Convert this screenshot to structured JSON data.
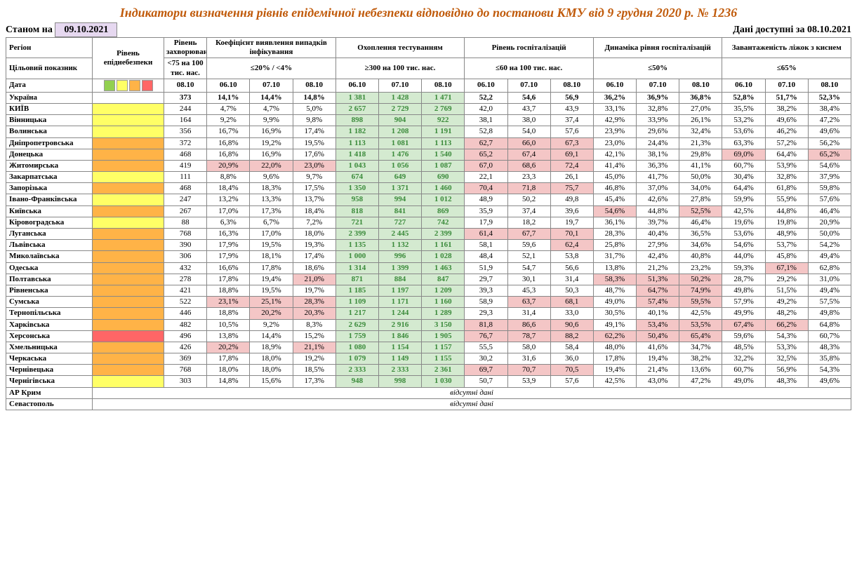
{
  "colors": {
    "title": "#c05a0a",
    "green_bg": "#d4ead0",
    "green_text": "#3a8a3a",
    "pink_bg": "#f4c6c6",
    "yellow_bg": "#ffff66",
    "orange_bg": "#ffb347",
    "red_bg": "#ff6666",
    "lvl_green": "#92d050",
    "lvl_yellow": "#ffff66",
    "lvl_orange": "#ffb347",
    "lvl_red": "#ff6666"
  },
  "title": "Індикатори визначення рівнів епідемічної небезпеки відповідно до постанови КМУ від 9 грудня 2020 р. № 1236",
  "as_of_label": "Станом на",
  "as_of_date": "09.10.2021",
  "available_label": "Дані доступні за",
  "available_date": "08.10.2021",
  "headers": {
    "region": "Регіон",
    "target": "Цільовий показник",
    "date": "Дата",
    "level": "Рівень епіднебезпеки",
    "morbidity": "Рівень захворюваності",
    "morbidity_t": "<75 на 100 тис. нас.",
    "coef": "Коефіцієнт виявлення випадків інфікування",
    "coef_t": "≤20% / <4%",
    "testing": "Охоплення тестуванням",
    "testing_t": "≥300 на 100 тис. нас.",
    "hosp": "Рівень госпіталізацій",
    "hosp_t": "≤60 на 100 тис. нас.",
    "dyn": "Динаміка рівня госпіталізацій",
    "dyn_t": "≤50%",
    "beds": "Завантаженість ліжок з киснем",
    "beds_t": "≤65%"
  },
  "dates": {
    "d_0810": "08.10",
    "d_0610": "06.10",
    "d_0710": "07.10"
  },
  "nodata": "відсутні дані",
  "rows": [
    {
      "region": "Україна",
      "lvl": "",
      "ukr": true,
      "morb": "373",
      "coef": [
        "14,1%",
        "14,4%",
        "14,8%"
      ],
      "test": [
        "1 381",
        "1 428",
        "1 471"
      ],
      "test_hl": [
        1,
        1,
        1
      ],
      "hosp": [
        "52,2",
        "54,6",
        "56,9"
      ],
      "dyn": [
        "36,2%",
        "36,9%",
        "36,8%"
      ],
      "beds": [
        "52,8%",
        "51,7%",
        "52,3%"
      ]
    },
    {
      "region": "КИЇВ",
      "lvl": "yellow",
      "morb": "244",
      "coef": [
        "4,7%",
        "4,7%",
        "5,0%"
      ],
      "test": [
        "2 657",
        "2 729",
        "2 769"
      ],
      "test_hl": [
        1,
        1,
        1
      ],
      "hosp": [
        "42,0",
        "43,7",
        "43,9"
      ],
      "dyn": [
        "33,1%",
        "32,8%",
        "27,0%"
      ],
      "beds": [
        "35,5%",
        "38,2%",
        "38,4%"
      ]
    },
    {
      "region": "Вінницька",
      "lvl": "yellow",
      "morb": "164",
      "coef": [
        "9,2%",
        "9,9%",
        "9,8%"
      ],
      "test": [
        "898",
        "904",
        "922"
      ],
      "test_hl": [
        1,
        1,
        1
      ],
      "hosp": [
        "38,1",
        "38,0",
        "37,4"
      ],
      "dyn": [
        "42,9%",
        "33,9%",
        "26,1%"
      ],
      "beds": [
        "53,2%",
        "49,6%",
        "47,2%"
      ]
    },
    {
      "region": "Волинська",
      "lvl": "yellow",
      "morb": "356",
      "coef": [
        "16,7%",
        "16,9%",
        "17,4%"
      ],
      "test": [
        "1 182",
        "1 208",
        "1 191"
      ],
      "test_hl": [
        1,
        1,
        1
      ],
      "hosp": [
        "52,8",
        "54,0",
        "57,6"
      ],
      "dyn": [
        "23,9%",
        "29,6%",
        "32,4%"
      ],
      "beds": [
        "53,6%",
        "46,2%",
        "49,6%"
      ]
    },
    {
      "region": "Дніпропетровська",
      "lvl": "orange",
      "morb": "372",
      "coef": [
        "16,8%",
        "19,2%",
        "19,5%"
      ],
      "test": [
        "1 113",
        "1 081",
        "1 113"
      ],
      "test_hl": [
        1,
        1,
        1
      ],
      "hosp": [
        "62,7",
        "66,0",
        "67,3"
      ],
      "hosp_hl": [
        1,
        1,
        1
      ],
      "dyn": [
        "23,0%",
        "24,4%",
        "21,3%"
      ],
      "beds": [
        "63,3%",
        "57,2%",
        "56,2%"
      ]
    },
    {
      "region": "Донецька",
      "lvl": "orange",
      "morb": "468",
      "coef": [
        "16,8%",
        "16,9%",
        "17,6%"
      ],
      "test": [
        "1 418",
        "1 476",
        "1 540"
      ],
      "test_hl": [
        1,
        1,
        1
      ],
      "hosp": [
        "65,2",
        "67,4",
        "69,1"
      ],
      "hosp_hl": [
        1,
        1,
        1
      ],
      "dyn": [
        "42,1%",
        "38,1%",
        "29,8%"
      ],
      "beds": [
        "69,0%",
        "64,4%",
        "65,2%"
      ],
      "beds_hl": [
        1,
        0,
        1
      ]
    },
    {
      "region": "Житомирська",
      "lvl": "orange",
      "morb": "419",
      "coef": [
        "20,9%",
        "22,0%",
        "23,0%"
      ],
      "coef_hl": [
        1,
        1,
        1
      ],
      "test": [
        "1 043",
        "1 056",
        "1 087"
      ],
      "test_hl": [
        1,
        1,
        1
      ],
      "hosp": [
        "67,0",
        "68,6",
        "72,4"
      ],
      "hosp_hl": [
        1,
        1,
        1
      ],
      "dyn": [
        "41,4%",
        "36,3%",
        "41,1%"
      ],
      "beds": [
        "60,7%",
        "53,9%",
        "54,6%"
      ]
    },
    {
      "region": "Закарпатська",
      "lvl": "yellow",
      "morb": "111",
      "coef": [
        "8,8%",
        "9,6%",
        "9,7%"
      ],
      "test": [
        "674",
        "649",
        "690"
      ],
      "test_hl": [
        1,
        1,
        1
      ],
      "hosp": [
        "22,1",
        "23,3",
        "26,1"
      ],
      "dyn": [
        "45,0%",
        "41,7%",
        "50,0%"
      ],
      "beds": [
        "30,4%",
        "32,8%",
        "37,9%"
      ]
    },
    {
      "region": "Запорізька",
      "lvl": "orange",
      "morb": "468",
      "coef": [
        "18,4%",
        "18,3%",
        "17,5%"
      ],
      "test": [
        "1 350",
        "1 371",
        "1 460"
      ],
      "test_hl": [
        1,
        1,
        1
      ],
      "hosp": [
        "70,4",
        "71,8",
        "75,7"
      ],
      "hosp_hl": [
        1,
        1,
        1
      ],
      "dyn": [
        "46,8%",
        "37,0%",
        "34,0%"
      ],
      "beds": [
        "64,4%",
        "61,8%",
        "59,8%"
      ]
    },
    {
      "region": "Івано-Франківська",
      "lvl": "yellow",
      "morb": "247",
      "coef": [
        "13,2%",
        "13,3%",
        "13,7%"
      ],
      "test": [
        "958",
        "994",
        "1 012"
      ],
      "test_hl": [
        1,
        1,
        1
      ],
      "hosp": [
        "48,9",
        "50,2",
        "49,8"
      ],
      "dyn": [
        "45,4%",
        "42,6%",
        "27,8%"
      ],
      "beds": [
        "59,9%",
        "55,9%",
        "57,6%"
      ]
    },
    {
      "region": "Київська",
      "lvl": "orange",
      "morb": "267",
      "coef": [
        "17,0%",
        "17,3%",
        "18,4%"
      ],
      "test": [
        "818",
        "841",
        "869"
      ],
      "test_hl": [
        1,
        1,
        1
      ],
      "hosp": [
        "35,9",
        "37,4",
        "39,6"
      ],
      "dyn": [
        "54,6%",
        "44,8%",
        "52,5%"
      ],
      "dyn_hl": [
        1,
        0,
        1
      ],
      "beds": [
        "42,5%",
        "44,8%",
        "46,4%"
      ]
    },
    {
      "region": "Кіровоградська",
      "lvl": "yellow",
      "morb": "88",
      "coef": [
        "6,3%",
        "6,7%",
        "7,2%"
      ],
      "test": [
        "721",
        "727",
        "742"
      ],
      "test_hl": [
        1,
        1,
        1
      ],
      "hosp": [
        "17,9",
        "18,2",
        "19,7"
      ],
      "dyn": [
        "36,1%",
        "39,7%",
        "46,4%"
      ],
      "beds": [
        "19,6%",
        "19,8%",
        "20,9%"
      ]
    },
    {
      "region": "Луганська",
      "lvl": "orange",
      "morb": "768",
      "coef": [
        "16,3%",
        "17,0%",
        "18,0%"
      ],
      "test": [
        "2 399",
        "2 445",
        "2 399"
      ],
      "test_hl": [
        1,
        1,
        1
      ],
      "hosp": [
        "61,4",
        "67,7",
        "70,1"
      ],
      "hosp_hl": [
        1,
        1,
        1
      ],
      "dyn": [
        "28,3%",
        "40,4%",
        "36,5%"
      ],
      "beds": [
        "53,6%",
        "48,9%",
        "50,0%"
      ]
    },
    {
      "region": "Львівська",
      "lvl": "orange",
      "morb": "390",
      "coef": [
        "17,9%",
        "19,5%",
        "19,3%"
      ],
      "test": [
        "1 135",
        "1 132",
        "1 161"
      ],
      "test_hl": [
        1,
        1,
        1
      ],
      "hosp": [
        "58,1",
        "59,6",
        "62,4"
      ],
      "hosp_hl": [
        0,
        0,
        1
      ],
      "dyn": [
        "25,8%",
        "27,9%",
        "34,6%"
      ],
      "beds": [
        "54,6%",
        "53,7%",
        "54,2%"
      ]
    },
    {
      "region": "Миколаївська",
      "lvl": "orange",
      "morb": "306",
      "coef": [
        "17,9%",
        "18,1%",
        "17,4%"
      ],
      "test": [
        "1 000",
        "996",
        "1 028"
      ],
      "test_hl": [
        1,
        1,
        1
      ],
      "hosp": [
        "48,4",
        "52,1",
        "53,8"
      ],
      "dyn": [
        "31,7%",
        "42,4%",
        "40,8%"
      ],
      "beds": [
        "44,0%",
        "45,8%",
        "49,4%"
      ]
    },
    {
      "region": "Одеська",
      "lvl": "orange",
      "morb": "432",
      "coef": [
        "16,6%",
        "17,8%",
        "18,6%"
      ],
      "test": [
        "1 314",
        "1 399",
        "1 463"
      ],
      "test_hl": [
        1,
        1,
        1
      ],
      "hosp": [
        "51,9",
        "54,7",
        "56,6"
      ],
      "dyn": [
        "13,8%",
        "21,2%",
        "23,2%"
      ],
      "beds": [
        "59,3%",
        "67,1%",
        "62,8%"
      ],
      "beds_hl": [
        0,
        1,
        0
      ]
    },
    {
      "region": "Полтавська",
      "lvl": "orange",
      "morb": "278",
      "coef": [
        "17,8%",
        "19,4%",
        "21,0%"
      ],
      "coef_hl": [
        0,
        0,
        1
      ],
      "test": [
        "871",
        "884",
        "847"
      ],
      "test_hl": [
        1,
        1,
        1
      ],
      "hosp": [
        "29,7",
        "30,1",
        "31,4"
      ],
      "dyn": [
        "58,3%",
        "51,3%",
        "50,2%"
      ],
      "dyn_hl": [
        1,
        1,
        1
      ],
      "beds": [
        "28,7%",
        "29,2%",
        "31,0%"
      ]
    },
    {
      "region": "Рівненська",
      "lvl": "orange",
      "morb": "421",
      "coef": [
        "18,8%",
        "19,5%",
        "19,7%"
      ],
      "test": [
        "1 185",
        "1 197",
        "1 209"
      ],
      "test_hl": [
        1,
        1,
        1
      ],
      "hosp": [
        "39,3",
        "45,3",
        "50,3"
      ],
      "dyn": [
        "48,7%",
        "64,7%",
        "74,9%"
      ],
      "dyn_hl": [
        0,
        1,
        1
      ],
      "beds": [
        "49,8%",
        "51,5%",
        "49,4%"
      ]
    },
    {
      "region": "Сумська",
      "lvl": "orange",
      "morb": "522",
      "coef": [
        "23,1%",
        "25,1%",
        "28,3%"
      ],
      "coef_hl": [
        1,
        1,
        1
      ],
      "test": [
        "1 109",
        "1 171",
        "1 160"
      ],
      "test_hl": [
        1,
        1,
        1
      ],
      "hosp": [
        "58,9",
        "63,7",
        "68,1"
      ],
      "hosp_hl": [
        0,
        1,
        1
      ],
      "dyn": [
        "49,0%",
        "57,4%",
        "59,5%"
      ],
      "dyn_hl": [
        0,
        1,
        1
      ],
      "beds": [
        "57,9%",
        "49,2%",
        "57,5%"
      ]
    },
    {
      "region": "Тернопільська",
      "lvl": "orange",
      "morb": "446",
      "coef": [
        "18,8%",
        "20,2%",
        "20,3%"
      ],
      "coef_hl": [
        0,
        1,
        1
      ],
      "test": [
        "1 217",
        "1 244",
        "1 289"
      ],
      "test_hl": [
        1,
        1,
        1
      ],
      "hosp": [
        "29,3",
        "31,4",
        "33,0"
      ],
      "dyn": [
        "30,5%",
        "40,1%",
        "42,5%"
      ],
      "beds": [
        "49,9%",
        "48,2%",
        "49,8%"
      ]
    },
    {
      "region": "Харківська",
      "lvl": "orange",
      "morb": "482",
      "coef": [
        "10,5%",
        "9,2%",
        "8,3%"
      ],
      "test": [
        "2 629",
        "2 916",
        "3 150"
      ],
      "test_hl": [
        1,
        1,
        1
      ],
      "hosp": [
        "81,8",
        "86,6",
        "90,6"
      ],
      "hosp_hl": [
        1,
        1,
        1
      ],
      "dyn": [
        "49,1%",
        "53,4%",
        "53,5%"
      ],
      "dyn_hl": [
        0,
        1,
        1
      ],
      "beds": [
        "67,4%",
        "66,2%",
        "64,8%"
      ],
      "beds_hl": [
        1,
        1,
        0
      ]
    },
    {
      "region": "Херсонська",
      "lvl": "red",
      "morb": "496",
      "coef": [
        "13,8%",
        "14,4%",
        "15,2%"
      ],
      "test": [
        "1 759",
        "1 846",
        "1 905"
      ],
      "test_hl": [
        1,
        1,
        1
      ],
      "hosp": [
        "76,7",
        "78,7",
        "88,2"
      ],
      "hosp_hl": [
        1,
        1,
        1
      ],
      "dyn": [
        "62,2%",
        "50,4%",
        "65,4%"
      ],
      "dyn_hl": [
        1,
        1,
        1
      ],
      "beds": [
        "59,6%",
        "54,3%",
        "60,7%"
      ]
    },
    {
      "region": "Хмельницька",
      "lvl": "orange",
      "morb": "426",
      "coef": [
        "20,2%",
        "18,9%",
        "21,1%"
      ],
      "coef_hl": [
        1,
        0,
        1
      ],
      "test": [
        "1 080",
        "1 154",
        "1 157"
      ],
      "test_hl": [
        1,
        1,
        1
      ],
      "hosp": [
        "55,5",
        "58,0",
        "58,4"
      ],
      "dyn": [
        "48,0%",
        "41,6%",
        "34,7%"
      ],
      "beds": [
        "48,5%",
        "53,3%",
        "48,3%"
      ]
    },
    {
      "region": "Черкаська",
      "lvl": "orange",
      "morb": "369",
      "coef": [
        "17,8%",
        "18,0%",
        "19,2%"
      ],
      "test": [
        "1 079",
        "1 149",
        "1 155"
      ],
      "test_hl": [
        1,
        1,
        1
      ],
      "hosp": [
        "30,2",
        "31,6",
        "36,0"
      ],
      "dyn": [
        "17,8%",
        "19,4%",
        "38,2%"
      ],
      "beds": [
        "32,2%",
        "32,5%",
        "35,8%"
      ]
    },
    {
      "region": "Чернівецька",
      "lvl": "orange",
      "morb": "768",
      "coef": [
        "18,0%",
        "18,0%",
        "18,5%"
      ],
      "test": [
        "2 333",
        "2 333",
        "2 361"
      ],
      "test_hl": [
        1,
        1,
        1
      ],
      "hosp": [
        "69,7",
        "70,7",
        "70,5"
      ],
      "hosp_hl": [
        1,
        1,
        1
      ],
      "dyn": [
        "19,4%",
        "21,4%",
        "13,6%"
      ],
      "beds": [
        "60,7%",
        "56,9%",
        "54,3%"
      ]
    },
    {
      "region": "Чернігівська",
      "lvl": "yellow",
      "morb": "303",
      "coef": [
        "14,8%",
        "15,6%",
        "17,3%"
      ],
      "test": [
        "948",
        "998",
        "1 030"
      ],
      "test_hl": [
        1,
        1,
        1
      ],
      "hosp": [
        "50,7",
        "53,9",
        "57,6"
      ],
      "dyn": [
        "42,5%",
        "43,0%",
        "47,2%"
      ],
      "beds": [
        "49,0%",
        "48,3%",
        "49,6%"
      ]
    }
  ],
  "nodata_rows": [
    "АР Крим",
    "Севастополь"
  ]
}
